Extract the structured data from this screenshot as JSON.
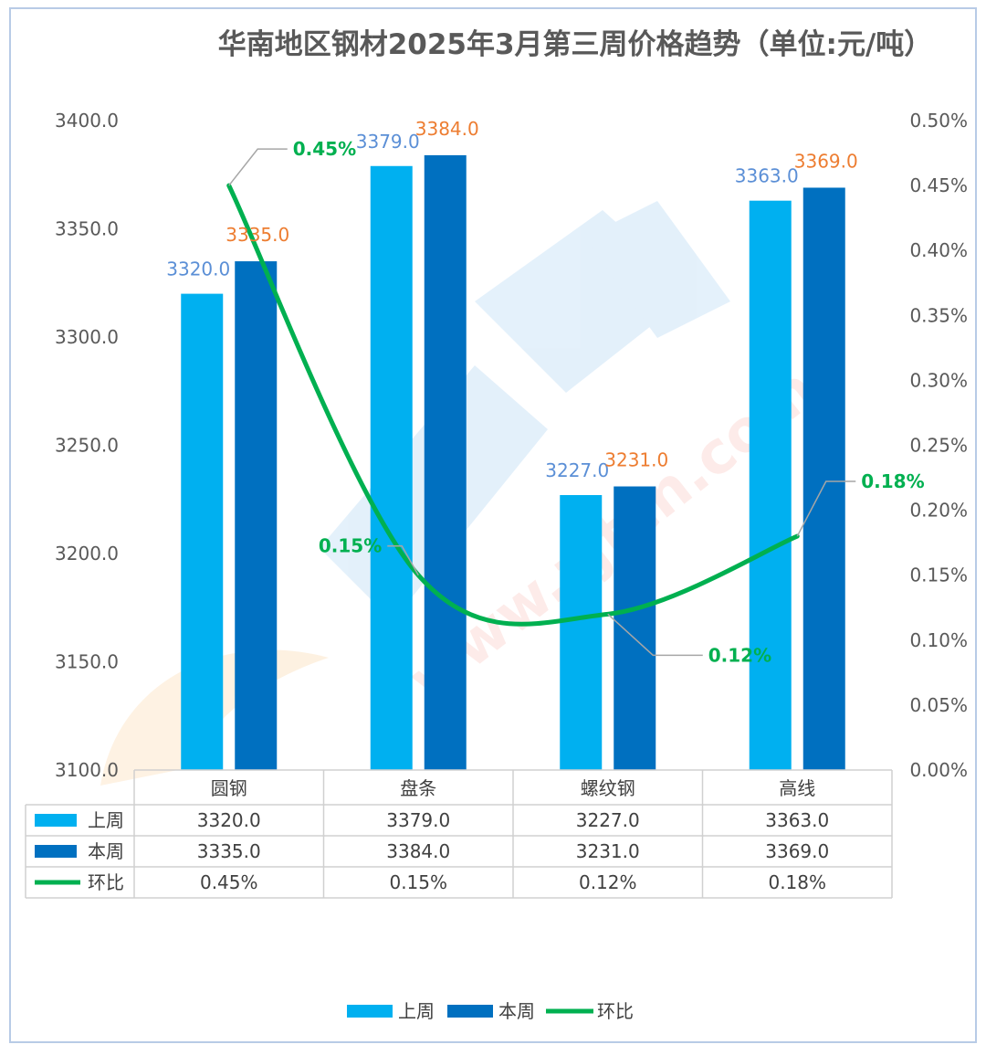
{
  "chart_data": {
    "type": "bar",
    "title": "华南地区钢材2025年3月第三周价格趋势（单位:元/吨）",
    "categories": [
      "圆钢",
      "盘条",
      "螺纹钢",
      "高线"
    ],
    "series": [
      {
        "name": "上周",
        "type": "bar",
        "color": "#00b0f0",
        "values": [
          3320.0,
          3379.0,
          3227.0,
          3363.0
        ]
      },
      {
        "name": "本周",
        "type": "bar",
        "color": "#0070c0",
        "values": [
          3335.0,
          3384.0,
          3231.0,
          3369.0
        ]
      },
      {
        "name": "环比",
        "type": "line",
        "axis": "right",
        "color": "#00b050",
        "values": [
          0.45,
          0.15,
          0.12,
          0.18
        ]
      }
    ],
    "y_left": {
      "min": 3100.0,
      "max": 3400.0,
      "ticks": [
        "3100.0",
        "3150.0",
        "3200.0",
        "3250.0",
        "3300.0",
        "3350.0",
        "3400.0"
      ]
    },
    "y_right": {
      "min": 0.0,
      "max": 0.5,
      "ticks": [
        "0.00%",
        "0.05%",
        "0.10%",
        "0.15%",
        "0.20%",
        "0.25%",
        "0.30%",
        "0.35%",
        "0.40%",
        "0.45%",
        "0.50%"
      ]
    },
    "data_labels": {
      "bar1": [
        "3320.0",
        "3379.0",
        "3227.0",
        "3363.0"
      ],
      "bar2": [
        "3335.0",
        "3384.0",
        "3231.0",
        "3369.0"
      ],
      "line": [
        "0.45%",
        "0.15%",
        "0.12%",
        "0.18%"
      ]
    },
    "table": {
      "rows": [
        {
          "name": "上周",
          "values": [
            "3320.0",
            "3379.0",
            "3227.0",
            "3363.0"
          ]
        },
        {
          "name": "本周",
          "values": [
            "3335.0",
            "3384.0",
            "3231.0",
            "3369.0"
          ]
        },
        {
          "name": "环比",
          "values": [
            "0.45%",
            "0.15%",
            "0.12%",
            "0.18%"
          ]
        }
      ]
    },
    "legend": {
      "position": "bottom",
      "items": [
        "上周",
        "本周",
        "环比"
      ]
    },
    "watermark": "中价通 www.zjtcn.com"
  }
}
